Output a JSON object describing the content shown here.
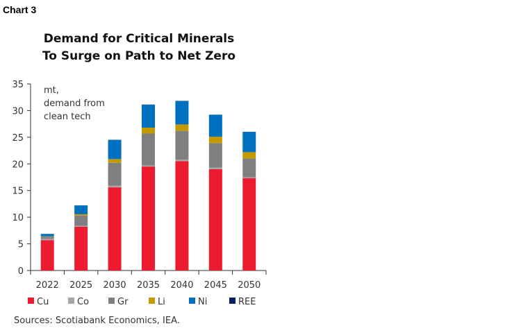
{
  "chart_label": "Chart 3",
  "source": "Sources: Scotiabank Economics, IEA.",
  "chart_data": {
    "type": "bar",
    "stacked": true,
    "title": "Demand for Critical Minerals To Surge on Path to Net Zero",
    "title_lines": [
      "Demand for Critical Minerals",
      "To Surge on Path to Net Zero"
    ],
    "annotation_lines": [
      "mt,",
      "demand from",
      "clean tech"
    ],
    "categories": [
      "2022",
      "2025",
      "2030",
      "2035",
      "2040",
      "2045",
      "2050"
    ],
    "ylim": [
      0,
      35
    ],
    "yticks": [
      0,
      5,
      10,
      15,
      20,
      25,
      30,
      35
    ],
    "grid": false,
    "legend_placement": "bottom",
    "series": [
      {
        "name": "Cu",
        "color": "#ed1b2f",
        "values": [
          5.7,
          8.2,
          15.6,
          19.5,
          20.5,
          19.0,
          17.3
        ]
      },
      {
        "name": "Co",
        "color": "#a6a6a6",
        "values": [
          0.25,
          0.2,
          0.3,
          0.2,
          0.3,
          0.3,
          0.2
        ]
      },
      {
        "name": "Gr",
        "color": "#7f7f7f",
        "values": [
          0.4,
          1.9,
          4.3,
          6.0,
          5.4,
          4.6,
          3.5
        ]
      },
      {
        "name": "Li",
        "color": "#c49a00",
        "values": [
          0.05,
          0.25,
          0.7,
          1.1,
          1.2,
          1.2,
          1.2
        ]
      },
      {
        "name": "Ni",
        "color": "#0070c0",
        "values": [
          0.45,
          1.65,
          3.6,
          4.3,
          4.4,
          4.1,
          3.8
        ]
      },
      {
        "name": "REE",
        "color": "#002060",
        "values": [
          0.02,
          0.02,
          0.03,
          0.03,
          0.03,
          0.03,
          0.03
        ]
      }
    ]
  }
}
